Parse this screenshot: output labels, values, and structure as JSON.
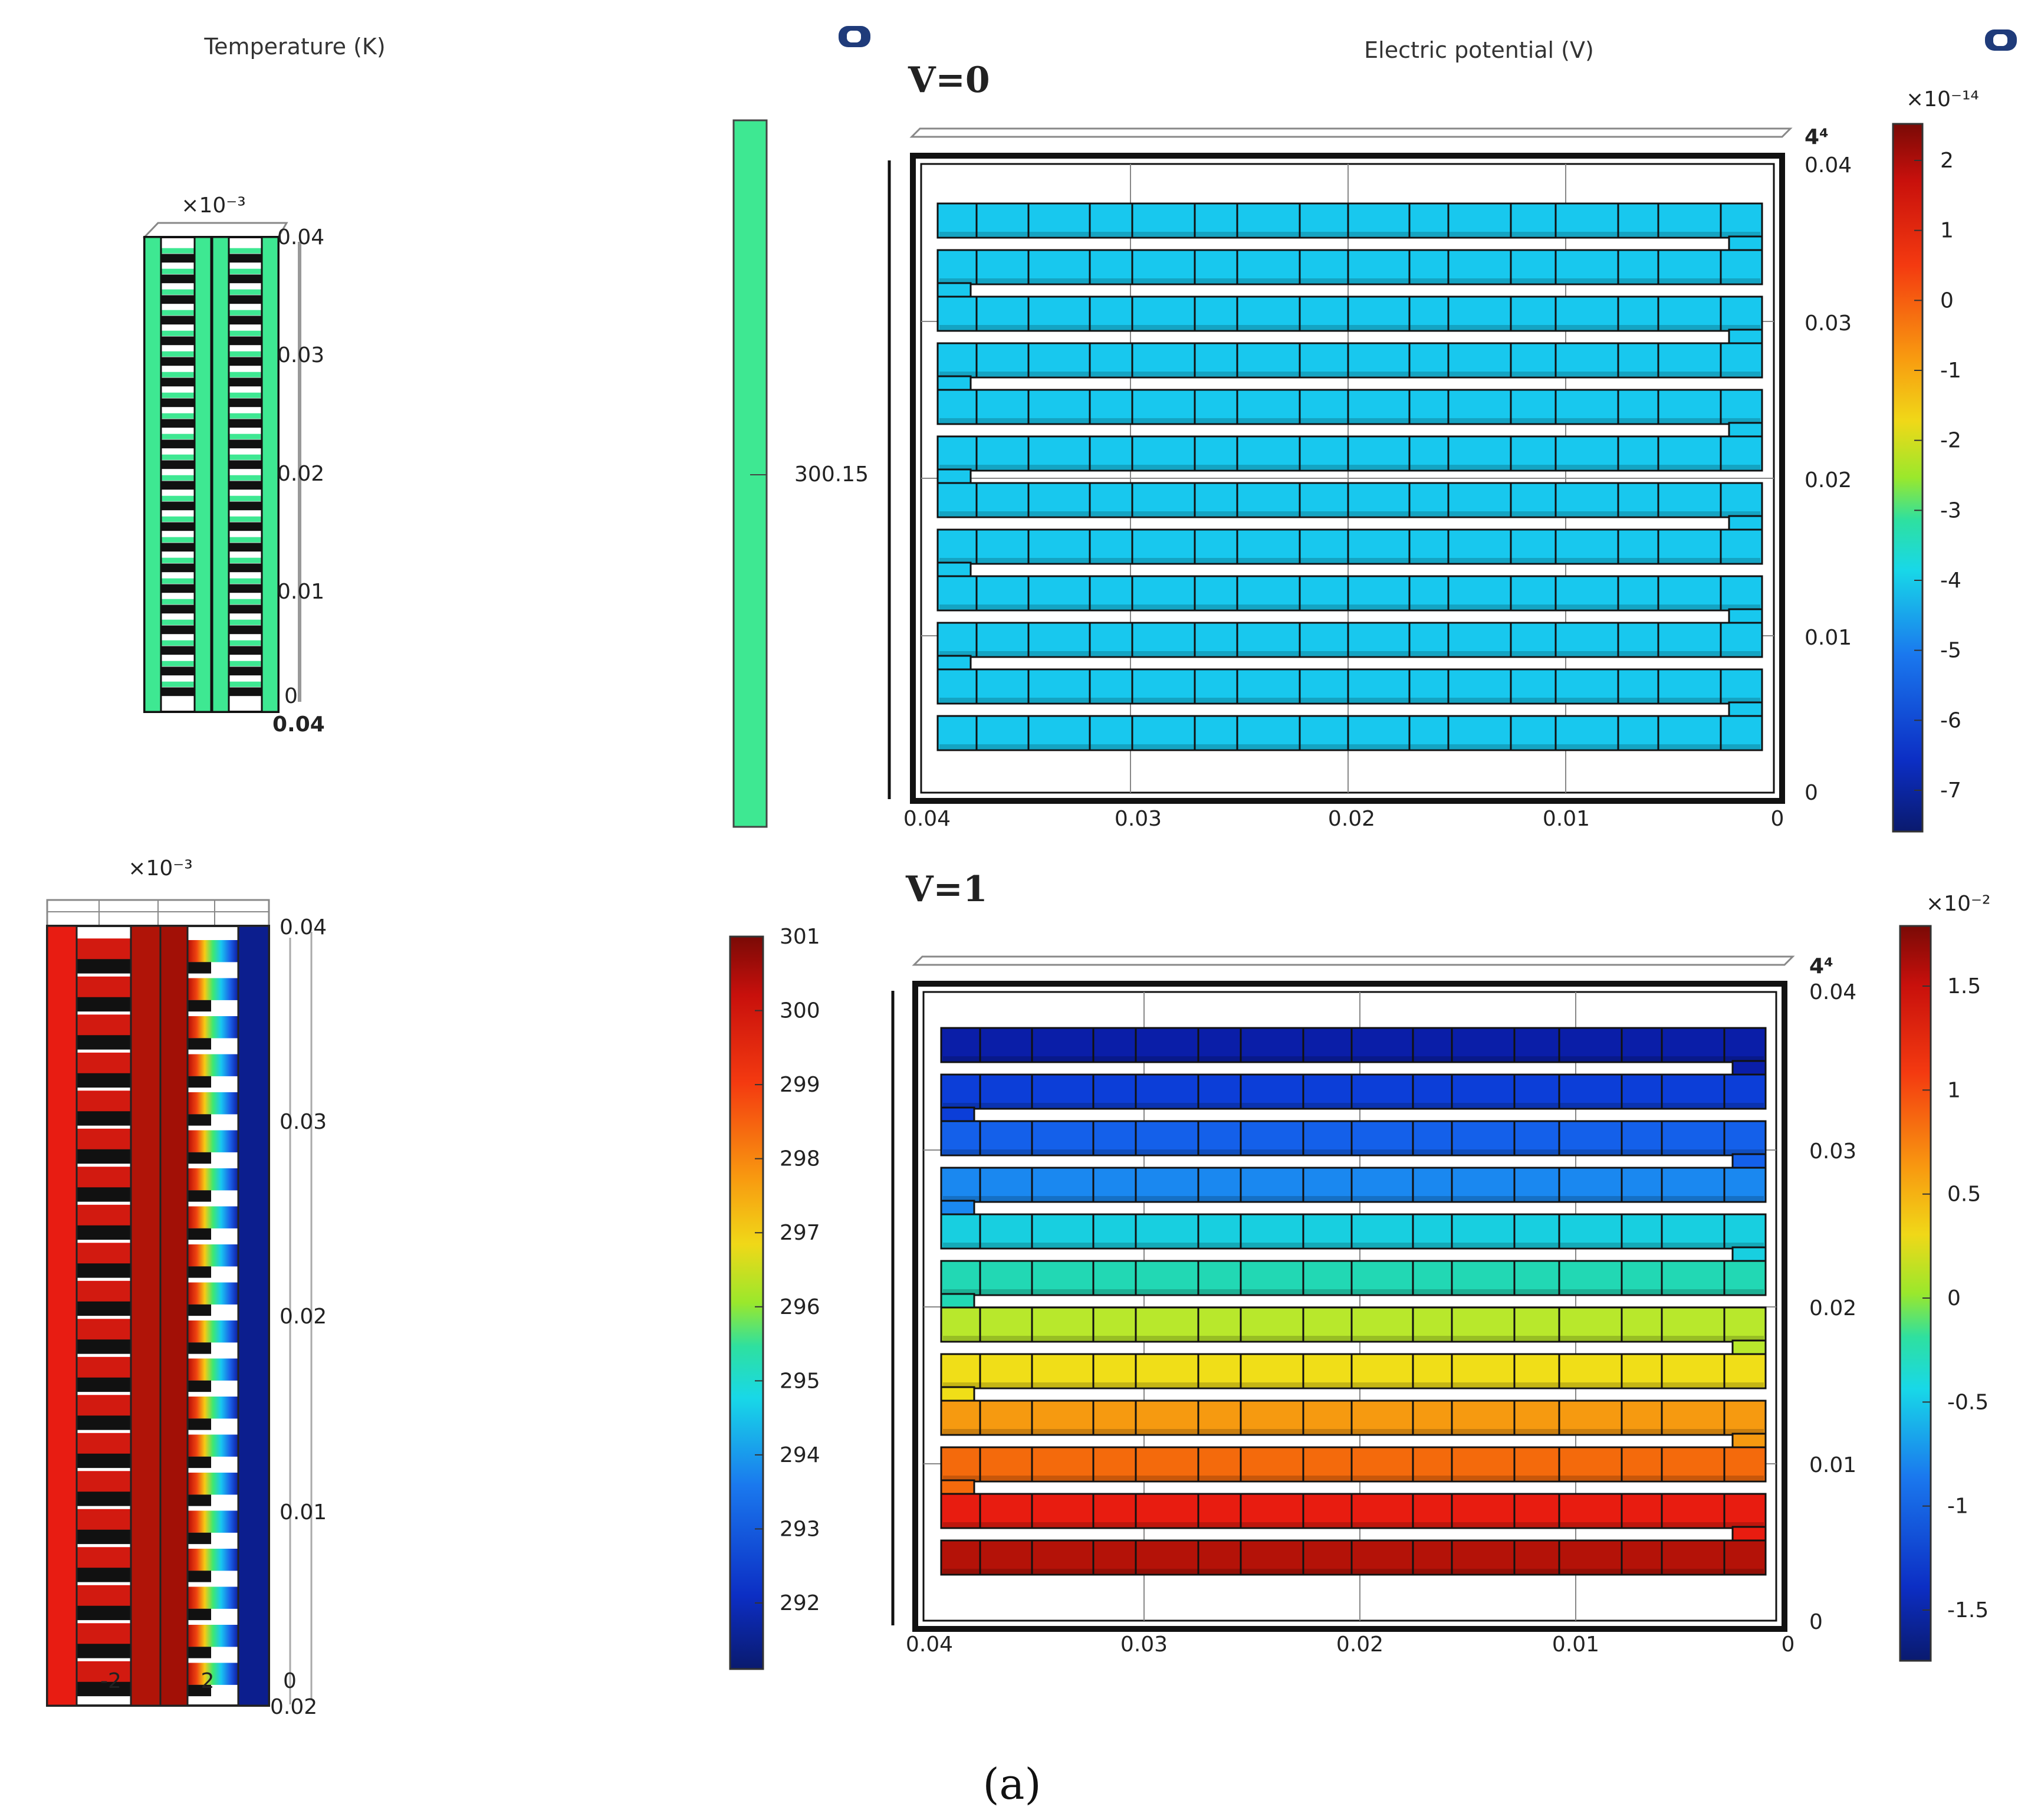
{
  "titles": {
    "temperature": "Temperature (K)",
    "potential": "Electric potential (V)"
  },
  "top": {
    "label": "V=0",
    "exp_left": "×10⁻³",
    "left_ticks": [
      "0.04",
      "0.03",
      "0.02",
      "0.01",
      "0"
    ],
    "left_bottom_tick": "0.04",
    "temp_value": "300.15",
    "x_ticks": [
      "0.04",
      "0.03",
      "0.02",
      "0.01",
      "0"
    ],
    "y_ticks": [
      "0.04",
      "0.03",
      "0.02",
      "0.01",
      "0"
    ],
    "corner_label": "4⁴",
    "cbar_exp": "×10⁻¹⁴",
    "cbar_ticks": [
      "2",
      "1",
      "0",
      "-1",
      "-2",
      "-3",
      "-4",
      "-5",
      "-6",
      "-7"
    ]
  },
  "bottom": {
    "label": "V=1",
    "exp_left": "×10⁻³",
    "left_ticks": [
      "0.04",
      "0.03",
      "0.02",
      "0.01",
      "0"
    ],
    "left_bottom_tick": "0.02",
    "left_bottom_marks": [
      "-2",
      "2"
    ],
    "temp_cbar_ticks": [
      "301",
      "300",
      "299",
      "298",
      "297",
      "296",
      "295",
      "294",
      "293",
      "292"
    ],
    "x_ticks": [
      "0.04",
      "0.03",
      "0.02",
      "0.01",
      "0"
    ],
    "y_ticks": [
      "0.04",
      "0.03",
      "0.02",
      "0.01",
      "0"
    ],
    "corner_label": "4⁴",
    "cbar_exp": "×10⁻²",
    "cbar_ticks": [
      "1.5",
      "1",
      "0.5",
      "0",
      "-0.5",
      "-1",
      "-1.5"
    ]
  },
  "caption": "(a)",
  "colors": {
    "top_potential": "#18c8ee",
    "top_temperature": "#3ee892",
    "bottom_rows": [
      "#0a1ea8",
      "#0c3ed8",
      "#1460ea",
      "#1a88f0",
      "#18cfe0",
      "#22d8b4",
      "#b8e82c",
      "#f0de18",
      "#f69a10",
      "#f46a0c",
      "#e81c10",
      "#b41208"
    ]
  }
}
